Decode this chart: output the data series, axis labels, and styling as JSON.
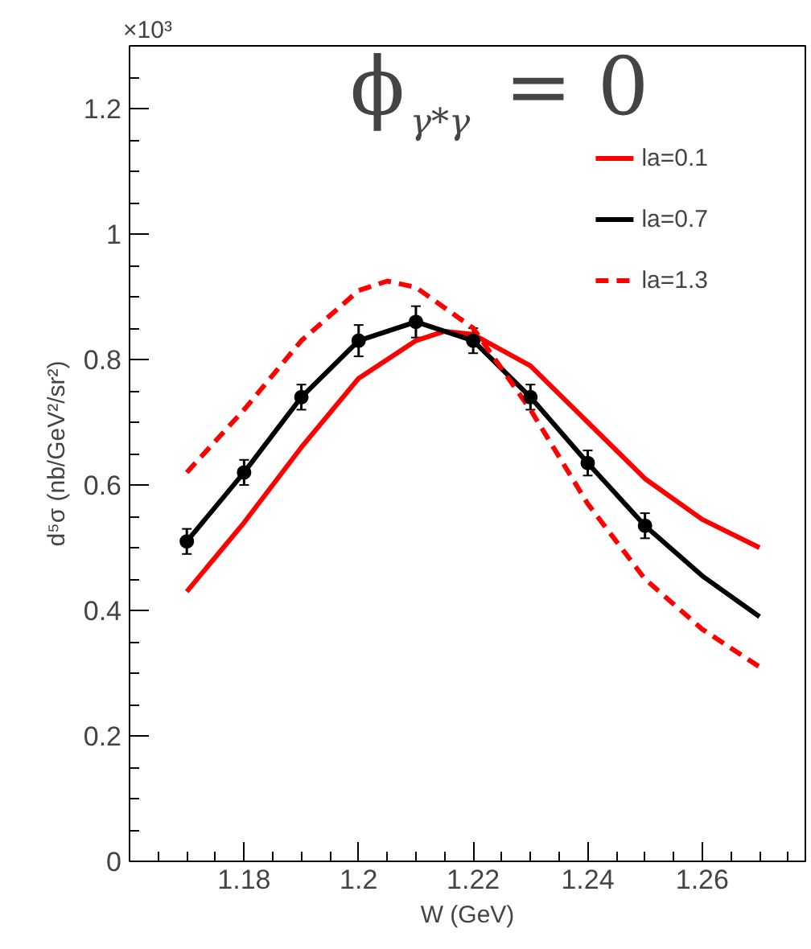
{
  "chart_data": {
    "type": "line",
    "title": "ϕ$_{γ*γ}$ = 0",
    "xlabel": "W (GeV)",
    "ylabel": "d⁵σ (nb/GeV²/sr²)",
    "annotations": [
      "×10³"
    ],
    "xlim": [
      1.16,
      1.278
    ],
    "xticks": [
      {
        "value": 1.18,
        "label": "1.18"
      },
      {
        "value": 1.2,
        "label": "1.2"
      },
      {
        "value": 1.22,
        "label": "1.22"
      },
      {
        "value": 1.24,
        "label": "1.24"
      },
      {
        "value": 1.26,
        "label": "1.26"
      }
    ],
    "ylim": [
      0,
      1.3
    ],
    "yticks": [
      0,
      0.2,
      0.4,
      0.6,
      0.8,
      {
        "value": 1,
        "label": "1"
      },
      1.2
    ],
    "grid": false,
    "legend": "top right",
    "series": [
      {
        "name": "la=0.1",
        "color": "#ff0000",
        "line_style": "solid",
        "marker": "none",
        "x": [
          1.17,
          1.18,
          1.19,
          1.2,
          1.21,
          1.215,
          1.22,
          1.23,
          1.24,
          1.25,
          1.26,
          1.27
        ],
        "values": [
          0.43,
          0.54,
          0.66,
          0.77,
          0.83,
          0.845,
          0.84,
          0.79,
          0.7,
          0.61,
          0.545,
          0.5
        ]
      },
      {
        "name": "la=0.7",
        "color": "#000000",
        "line_style": "solid",
        "marker": "none",
        "x": [
          1.17,
          1.18,
          1.19,
          1.2,
          1.21,
          1.22,
          1.23,
          1.24,
          1.25,
          1.26,
          1.27
        ],
        "values": [
          0.51,
          0.62,
          0.74,
          0.83,
          0.86,
          0.83,
          0.74,
          0.635,
          0.535,
          0.455,
          0.39
        ]
      },
      {
        "name": "la=1.3",
        "color": "#ff0000",
        "line_style": "dashed",
        "marker": "none",
        "x": [
          1.17,
          1.18,
          1.19,
          1.2,
          1.205,
          1.21,
          1.22,
          1.23,
          1.24,
          1.25,
          1.26,
          1.27
        ],
        "values": [
          0.62,
          0.72,
          0.83,
          0.91,
          0.925,
          0.915,
          0.85,
          0.72,
          0.57,
          0.45,
          0.37,
          0.31
        ]
      },
      {
        "type": "scatter",
        "color": "#000000",
        "marker": "circle",
        "x": [
          1.17,
          1.18,
          1.19,
          1.2,
          1.21,
          1.22,
          1.23,
          1.24,
          1.25
        ],
        "values": [
          0.51,
          0.62,
          0.74,
          0.83,
          0.86,
          0.83,
          0.74,
          0.635,
          0.535
        ],
        "errors": [
          0.02,
          0.02,
          0.02,
          0.025,
          0.025,
          0.02,
          0.02,
          0.02,
          0.02
        ]
      }
    ]
  }
}
